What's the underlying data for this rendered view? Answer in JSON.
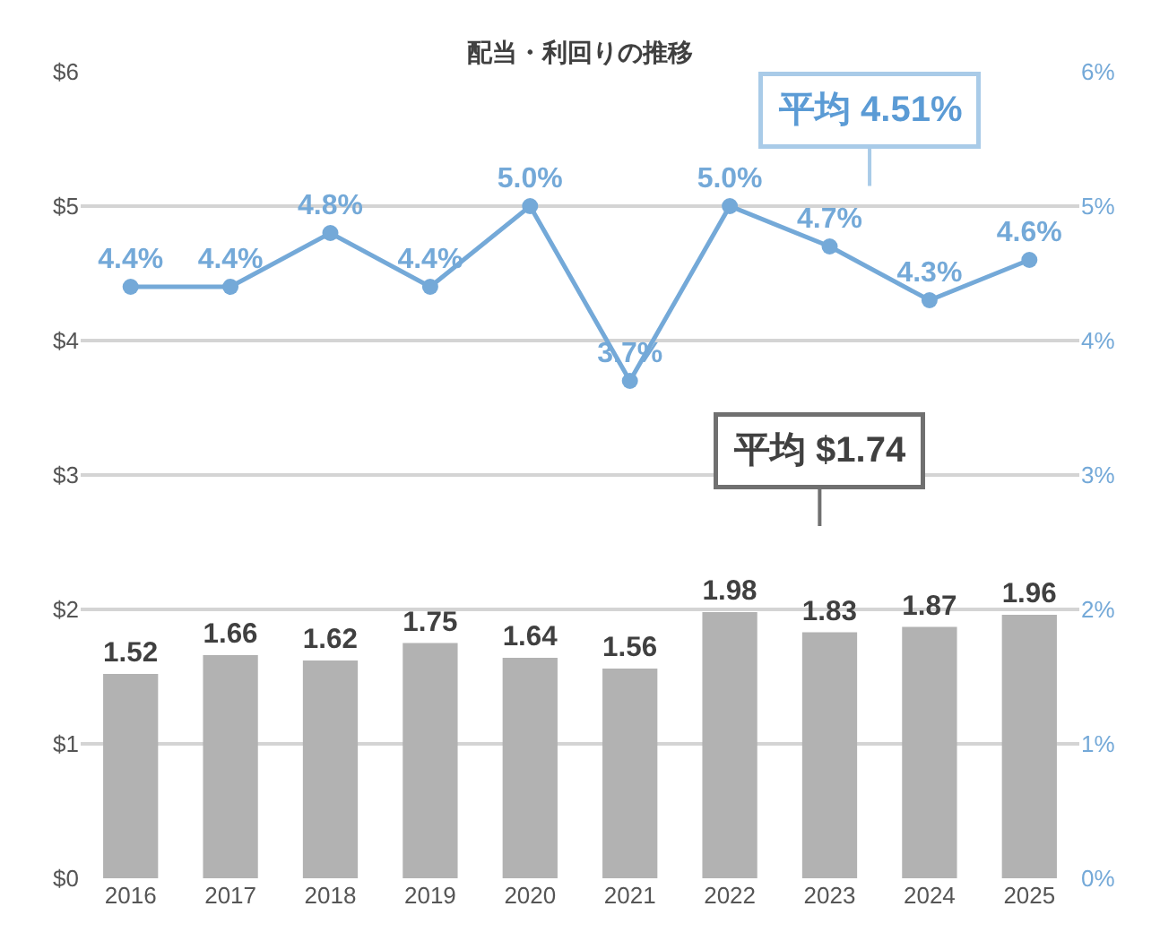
{
  "chart_data": {
    "type": "bar",
    "title": "配当・利回りの推移",
    "categories": [
      "2016",
      "2017",
      "2018",
      "2019",
      "2020",
      "2021",
      "2022",
      "2023",
      "2024",
      "2025"
    ],
    "series": [
      {
        "color": "#b2b2b2",
        "values": [
          1.52,
          1.66,
          1.62,
          1.75,
          1.64,
          1.56,
          1.98,
          1.83,
          1.87,
          1.96
        ],
        "value_labels": [
          "1.52",
          "1.66",
          "1.62",
          "1.75",
          "1.64",
          "1.56",
          "1.98",
          "1.83",
          "1.87",
          "1.96"
        ]
      },
      {
        "type": "line",
        "axis": "y2",
        "color": "#74a9d8",
        "values": [
          4.4,
          4.4,
          4.8,
          4.4,
          5.0,
          3.7,
          5.0,
          4.7,
          4.3,
          4.6
        ],
        "value_labels": [
          "4.4%",
          "4.4%",
          "4.8%",
          "4.4%",
          "5.0%",
          "3.7%",
          "5.0%",
          "4.7%",
          "4.3%",
          "4.6%"
        ]
      }
    ],
    "ylim": [
      0,
      6
    ],
    "yticks": [
      {
        "value": 0,
        "label": "$0"
      },
      {
        "value": 1,
        "label": "$1"
      },
      {
        "value": 2,
        "label": "$2"
      },
      {
        "value": 3,
        "label": "$3"
      },
      {
        "value": 4,
        "label": "$4"
      },
      {
        "value": 5,
        "label": "$5"
      },
      {
        "value": 6,
        "label": "$6"
      }
    ],
    "y2lim": [
      0,
      6
    ],
    "y2ticks": [
      {
        "value": 0,
        "label": "0%"
      },
      {
        "value": 1,
        "label": "1%"
      },
      {
        "value": 2,
        "label": "2%"
      },
      {
        "value": 3,
        "label": "3%"
      },
      {
        "value": 4,
        "label": "4%"
      },
      {
        "value": 5,
        "label": "5%"
      },
      {
        "value": 6,
        "label": "6%"
      }
    ],
    "annotations": [
      "平均 4.51%",
      "平均 $1.74"
    ],
    "grid": "y",
    "marker": "circle",
    "line_style": "solid"
  }
}
